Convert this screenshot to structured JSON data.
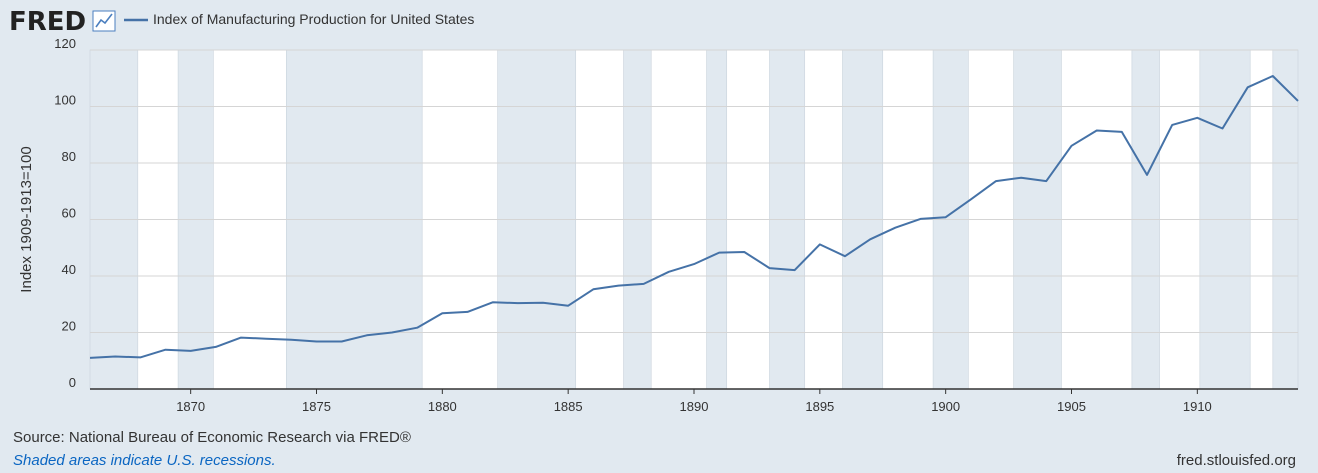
{
  "header": {
    "logo_text": "FRED",
    "logo_icon": "line-chart-icon",
    "legend_label": "Index of Manufacturing Production for United States"
  },
  "colors": {
    "background": "#e1e9f0",
    "plot_background": "#ffffff",
    "recession_shade": "#e1e9f0",
    "line": "#4572a7",
    "link": "#0b66c2"
  },
  "footer": {
    "source": "Source: National Bureau of Economic Research via FRED®",
    "recession_note": "Shaded areas indicate U.S. recessions.",
    "site": "fred.stlouisfed.org"
  },
  "chart_data": {
    "type": "line",
    "title": "",
    "xlabel": "",
    "ylabel": "Index 1909-1913=100",
    "xlim": [
      1866,
      1914
    ],
    "ylim": [
      0,
      120
    ],
    "x_ticks": [
      1870,
      1875,
      1880,
      1885,
      1890,
      1895,
      1900,
      1905,
      1910
    ],
    "y_ticks": [
      0,
      20,
      40,
      60,
      80,
      100,
      120
    ],
    "grid": true,
    "legend_position": "top-left",
    "recessions": [
      [
        1866.0,
        1867.9
      ],
      [
        1869.5,
        1870.9
      ],
      [
        1873.8,
        1879.2
      ],
      [
        1882.2,
        1885.3
      ],
      [
        1887.2,
        1888.3
      ],
      [
        1890.5,
        1891.3
      ],
      [
        1893.0,
        1894.4
      ],
      [
        1895.9,
        1897.5
      ],
      [
        1899.5,
        1900.9
      ],
      [
        1902.7,
        1904.6
      ],
      [
        1907.4,
        1908.5
      ],
      [
        1910.1,
        1912.1
      ],
      [
        1913.0,
        1914.0
      ]
    ],
    "series": [
      {
        "name": "Index of Manufacturing Production for United States",
        "x": [
          1866,
          1867,
          1868,
          1869,
          1870,
          1871,
          1872,
          1873,
          1874,
          1875,
          1876,
          1877,
          1878,
          1879,
          1880,
          1881,
          1882,
          1883,
          1884,
          1885,
          1886,
          1887,
          1888,
          1889,
          1890,
          1891,
          1892,
          1893,
          1894,
          1895,
          1896,
          1897,
          1898,
          1899,
          1900,
          1901,
          1902,
          1903,
          1904,
          1905,
          1906,
          1907,
          1908,
          1909,
          1910,
          1911,
          1912,
          1913,
          1914
        ],
        "values": [
          11,
          11.5,
          11.2,
          13.9,
          13.5,
          14.9,
          18.2,
          17.8,
          17.4,
          16.8,
          16.8,
          19,
          20,
          21.7,
          26.8,
          27.3,
          30.7,
          30.4,
          30.5,
          29.5,
          35.3,
          36.6,
          37.2,
          41.5,
          44.2,
          48.3,
          48.5,
          42.8,
          42.1,
          51.2,
          47,
          53,
          57.1,
          60.2,
          60.8,
          67.1,
          73.6,
          74.8,
          73.6,
          86.1,
          91.5,
          91,
          75.8,
          93.5,
          96,
          92.2,
          106.8,
          110.8,
          102
        ]
      }
    ]
  }
}
